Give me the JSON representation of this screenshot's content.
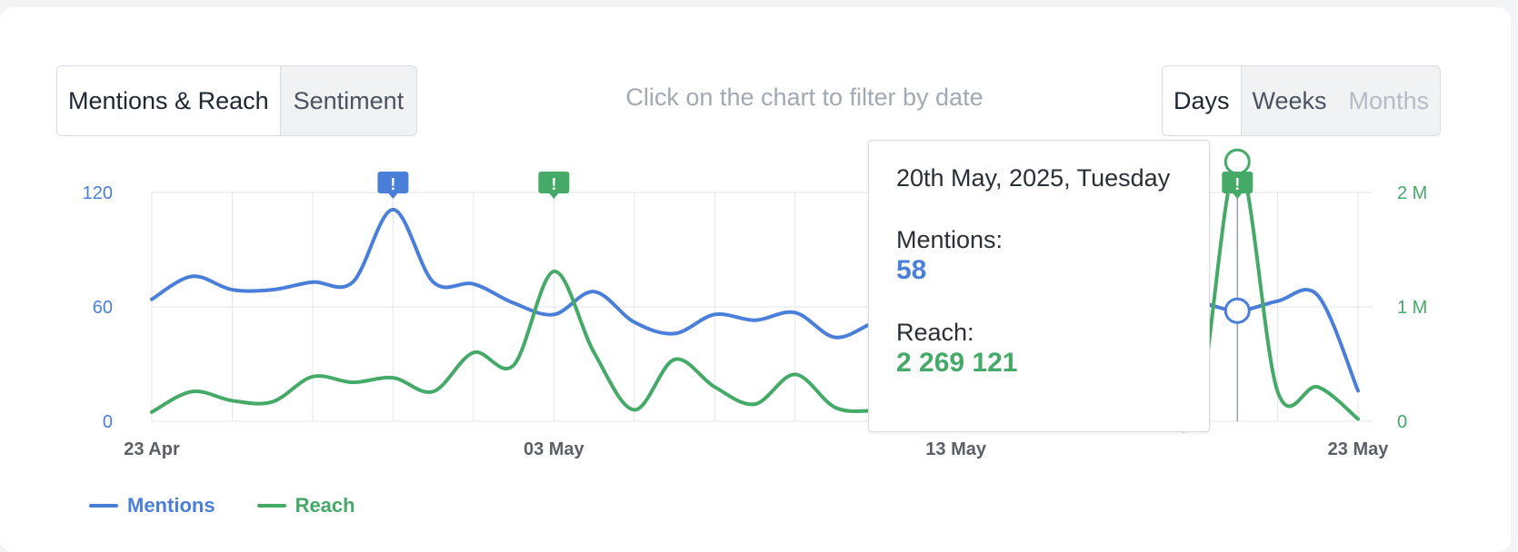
{
  "tabs": [
    {
      "label": "Mentions & Reach",
      "active": true
    },
    {
      "label": "Sentiment",
      "active": false
    }
  ],
  "hint": "Click on the chart to filter by date",
  "period": [
    {
      "label": "Days",
      "state": "active"
    },
    {
      "label": "Weeks",
      "state": "normal"
    },
    {
      "label": "Months",
      "state": "disabled"
    }
  ],
  "colors": {
    "mentions": "#4a7fd9",
    "reach": "#45aa68",
    "grid": "#e4e6ea",
    "axis_text": "#5b5f66"
  },
  "tooltip": {
    "date": "20th May, 2025, Tuesday",
    "mentions_label": "Mentions:",
    "mentions_value": "58",
    "reach_label": "Reach:",
    "reach_value": "2 269 121"
  },
  "legend": [
    {
      "name": "Mentions",
      "color": "#4a7fd9"
    },
    {
      "name": "Reach",
      "color": "#45aa68"
    }
  ],
  "chart_data": {
    "type": "line",
    "x": [
      "23 Apr",
      "24 Apr",
      "25 Apr",
      "26 Apr",
      "27 Apr",
      "28 Apr",
      "29 Apr",
      "30 Apr",
      "01 May",
      "02 May",
      "03 May",
      "04 May",
      "05 May",
      "06 May",
      "07 May",
      "08 May",
      "09 May",
      "10 May",
      "11 May",
      "12 May",
      "13 May",
      "14 May",
      "15 May",
      "16 May",
      "17 May",
      "18 May",
      "19 May",
      "20 May",
      "21 May",
      "22 May",
      "23 May"
    ],
    "xticks": [
      "23 Apr",
      "03 May",
      "13 May",
      "23 May"
    ],
    "series": [
      {
        "name": "Mentions",
        "axis": "left",
        "values": [
          64,
          76,
          69,
          69,
          73,
          73,
          111,
          73,
          72,
          62,
          56,
          68,
          52,
          46,
          56,
          53,
          57,
          44,
          52,
          56,
          58,
          57,
          58,
          58,
          58,
          58,
          62,
          58,
          63,
          66,
          16
        ]
      },
      {
        "name": "Reach",
        "axis": "right",
        "values": [
          80000,
          260000,
          180000,
          170000,
          390000,
          340000,
          380000,
          260000,
          600000,
          490000,
          1310000,
          600000,
          100000,
          540000,
          300000,
          150000,
          410000,
          120000,
          90000,
          80000,
          80000,
          80000,
          80000,
          80000,
          80000,
          80000,
          80000,
          2269121,
          260000,
          300000,
          20000
        ]
      }
    ],
    "yaxis_left": {
      "ticks": [
        "0",
        "60",
        "120"
      ],
      "range": [
        0,
        120
      ]
    },
    "yaxis_right": {
      "ticks": [
        "0",
        "1 M",
        "2 M"
      ],
      "range": [
        0,
        2000000
      ]
    },
    "markers": [
      {
        "date": "29 Apr",
        "series": "Mentions",
        "icon": "alert-icon"
      },
      {
        "date": "03 May",
        "series": "Reach",
        "icon": "alert-icon"
      },
      {
        "date": "20 May",
        "series": "Reach",
        "icon": "alert-icon"
      }
    ],
    "highlight": "20 May",
    "grid": true,
    "legend_position": "bottom-left"
  }
}
